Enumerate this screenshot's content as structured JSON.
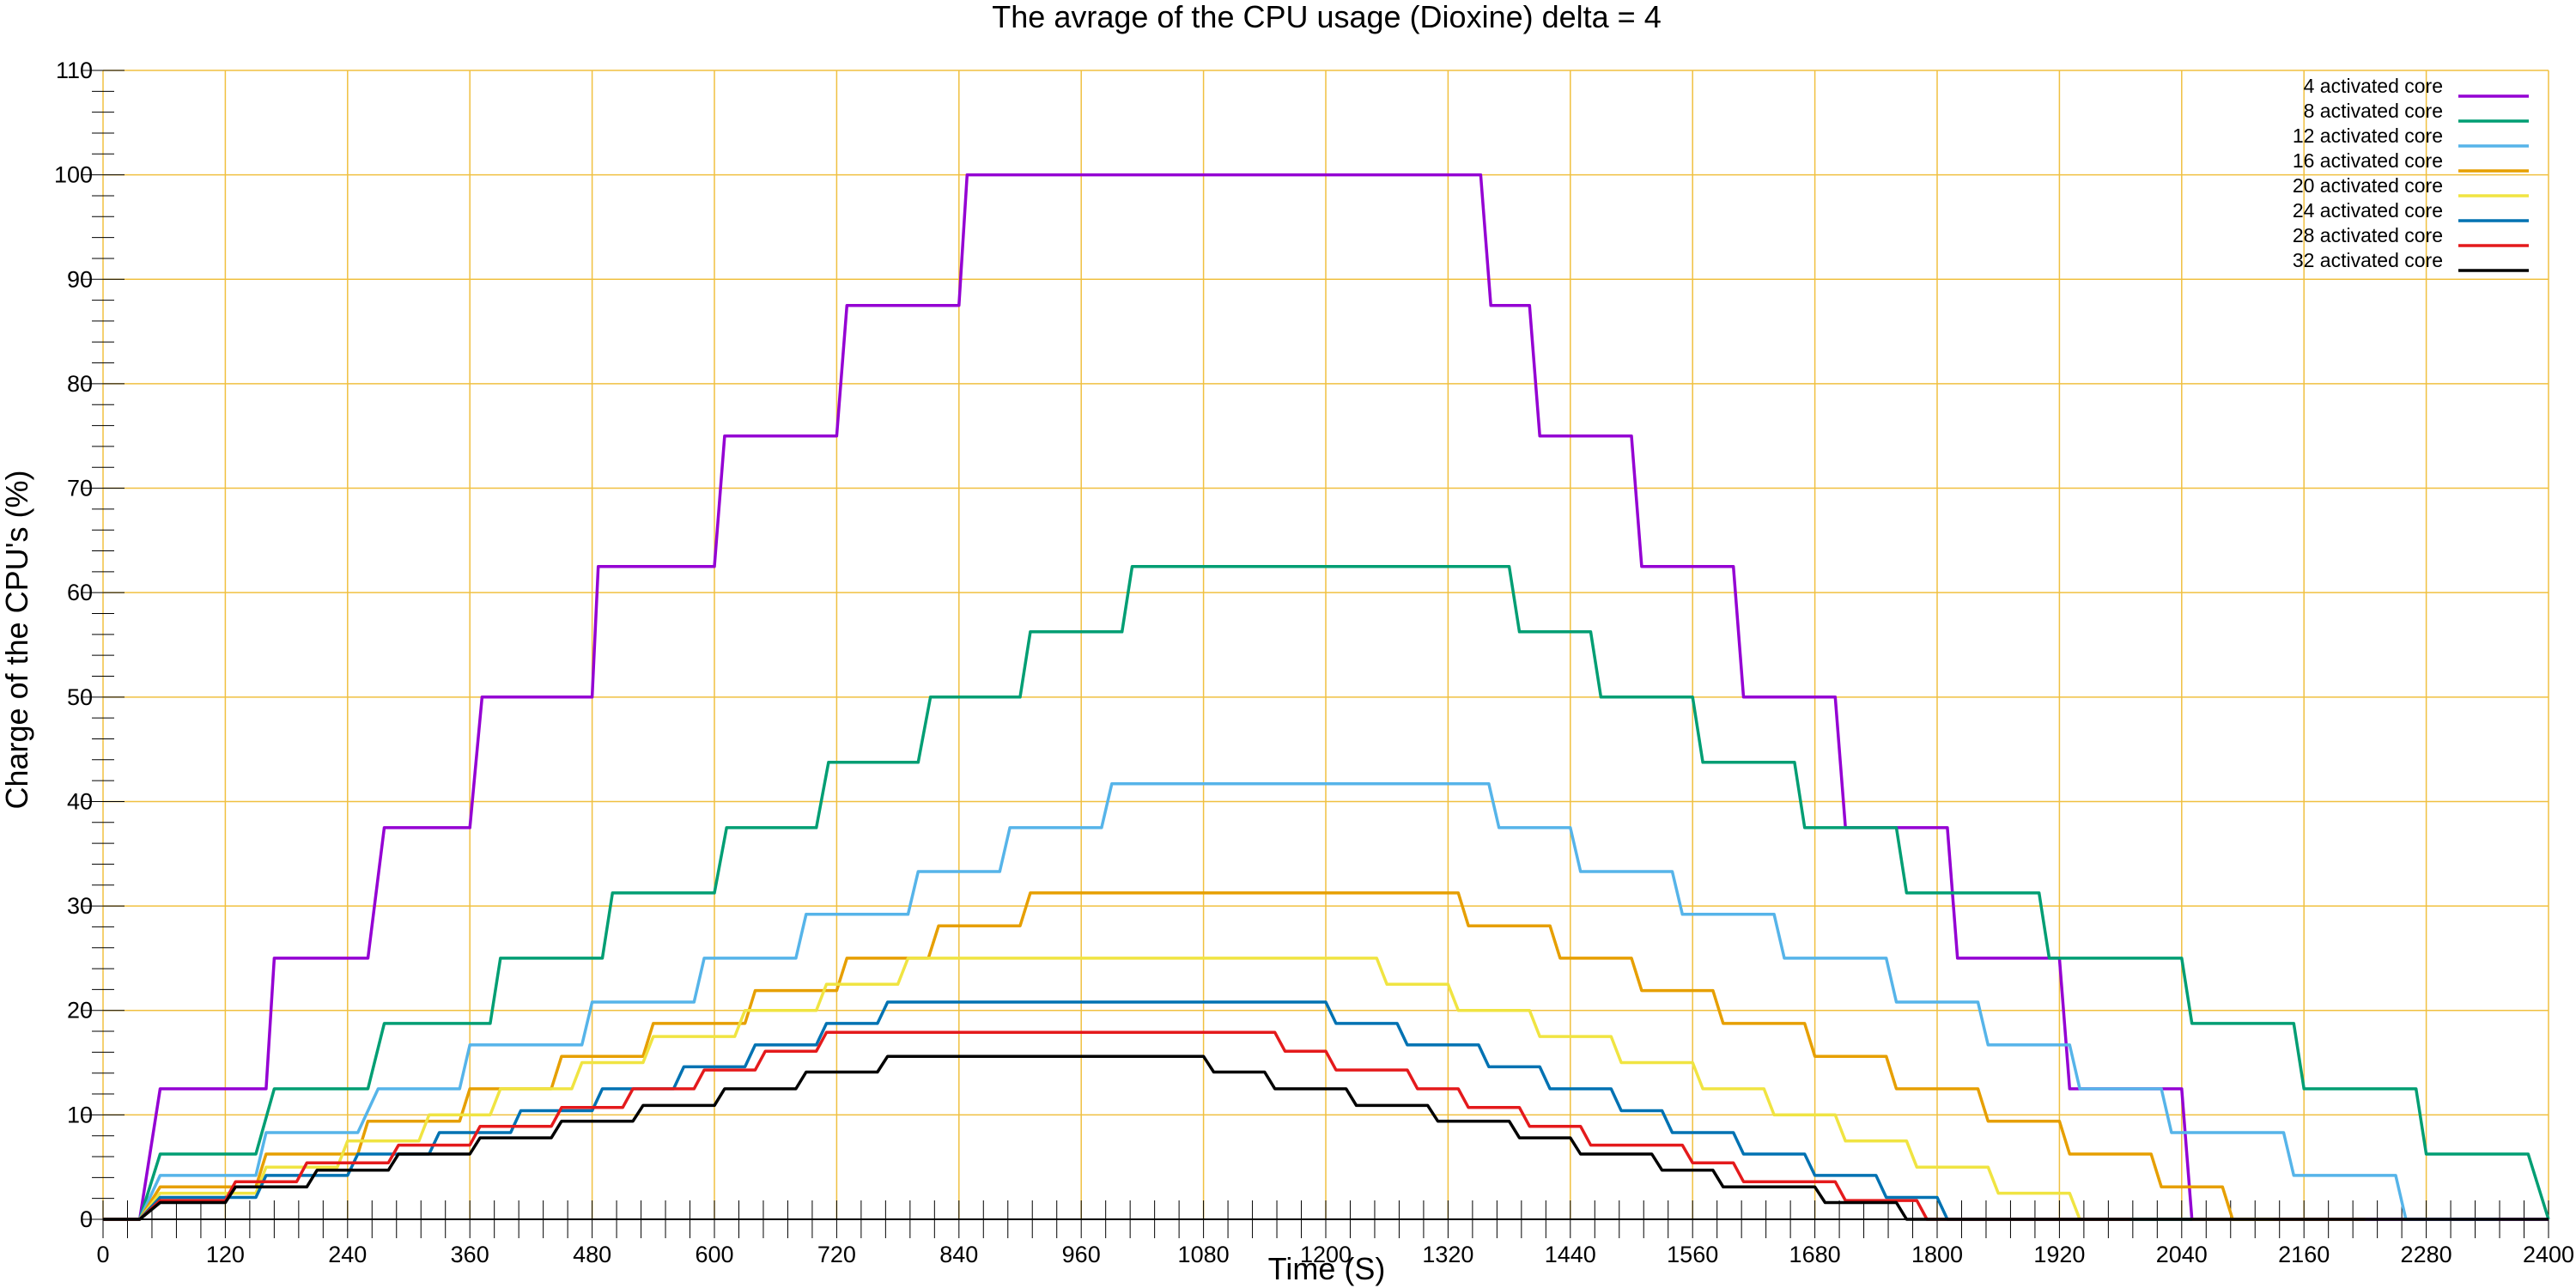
{
  "chart_data": {
    "type": "line",
    "title": "The avrage of the CPU usage (Dioxine) delta = 4",
    "xlabel": "Time (S)",
    "ylabel": "Charge of the CPU's (%)",
    "xlim": [
      0,
      2400
    ],
    "ylim": [
      0,
      110
    ],
    "xticks": [
      0,
      120,
      240,
      360,
      480,
      600,
      720,
      840,
      960,
      1080,
      1200,
      1320,
      1440,
      1560,
      1680,
      1800,
      1920,
      2040,
      2160,
      2280,
      2400
    ],
    "yticks": [
      0,
      10,
      20,
      30,
      40,
      50,
      60,
      70,
      80,
      90,
      100,
      110
    ],
    "grid": true,
    "grid_color": "#f0c040",
    "legend_position": "top-right",
    "series": [
      {
        "name": "4 activated core",
        "color": "#9400d3",
        "x": [
          0,
          36,
          56,
          160,
          168,
          260,
          276,
          360,
          372,
          480,
          486,
          600,
          610,
          720,
          730,
          840,
          848,
          1352,
          1362,
          1400,
          1410,
          1500,
          1510,
          1600,
          1610,
          1700,
          1710,
          1810,
          1820,
          1920,
          1930,
          2040,
          2050,
          2140,
          2150,
          2400
        ],
        "y": [
          0,
          0,
          12.5,
          12.5,
          25,
          25,
          37.5,
          37.5,
          50,
          50,
          62.5,
          62.5,
          75,
          75,
          87.5,
          87.5,
          100,
          100,
          87.5,
          87.5,
          75,
          75,
          62.5,
          62.5,
          50,
          50,
          37.5,
          37.5,
          25,
          25,
          12.5,
          12.5,
          0,
          0,
          0,
          0
        ]
      },
      {
        "name": "8 activated core",
        "color": "#009e73",
        "x": [
          0,
          36,
          56,
          150,
          168,
          260,
          276,
          380,
          390,
          490,
          500,
          600,
          612,
          700,
          712,
          800,
          812,
          900,
          910,
          1000,
          1010,
          1380,
          1390,
          1460,
          1470,
          1560,
          1570,
          1660,
          1670,
          1760,
          1770,
          1900,
          1910,
          2040,
          2050,
          2150,
          2160,
          2270,
          2280,
          2380,
          2400
        ],
        "y": [
          0,
          0,
          6.25,
          6.25,
          12.5,
          12.5,
          18.75,
          18.75,
          25,
          25,
          31.25,
          31.25,
          37.5,
          37.5,
          43.75,
          43.75,
          50,
          50,
          56.25,
          56.25,
          62.5,
          62.5,
          56.25,
          56.25,
          50,
          50,
          43.75,
          43.75,
          37.5,
          37.5,
          31.25,
          31.25,
          25,
          25,
          18.75,
          18.75,
          12.5,
          12.5,
          6.25,
          6.25,
          0
        ]
      },
      {
        "name": "12 activated core",
        "color": "#56b4e9",
        "x": [
          0,
          36,
          56,
          150,
          160,
          250,
          270,
          350,
          360,
          470,
          480,
          580,
          590,
          680,
          690,
          790,
          800,
          880,
          890,
          980,
          990,
          1360,
          1370,
          1440,
          1450,
          1540,
          1550,
          1640,
          1650,
          1750,
          1760,
          1840,
          1850,
          1930,
          1940,
          2020,
          2030,
          2140,
          2150,
          2250,
          2260,
          2340,
          2350
        ],
        "y": [
          0,
          0,
          4.2,
          4.2,
          8.3,
          8.3,
          12.5,
          12.5,
          16.7,
          16.7,
          20.8,
          20.8,
          25,
          25,
          29.2,
          29.2,
          33.3,
          33.3,
          37.5,
          37.5,
          41.7,
          41.7,
          37.5,
          37.5,
          33.3,
          33.3,
          29.2,
          29.2,
          25,
          25,
          20.8,
          20.8,
          16.7,
          16.7,
          12.5,
          12.5,
          8.3,
          8.3,
          4.2,
          4.2,
          0,
          0,
          0
        ]
      },
      {
        "name": "16 activated core",
        "color": "#e69f00",
        "x": [
          0,
          36,
          56,
          150,
          160,
          250,
          260,
          350,
          360,
          440,
          450,
          530,
          540,
          630,
          640,
          720,
          730,
          810,
          820,
          900,
          910,
          1330,
          1340,
          1420,
          1430,
          1500,
          1510,
          1580,
          1590,
          1670,
          1680,
          1750,
          1760,
          1840,
          1850,
          1920,
          1930,
          2010,
          2020,
          2080,
          2090,
          2180,
          2190,
          2210,
          2220
        ],
        "y": [
          0,
          0,
          3.1,
          3.1,
          6.25,
          6.25,
          9.4,
          9.4,
          12.5,
          12.5,
          15.6,
          15.6,
          18.75,
          18.75,
          21.9,
          21.9,
          25,
          25,
          28.1,
          28.1,
          31.25,
          31.25,
          28.1,
          28.1,
          25,
          25,
          21.9,
          21.9,
          18.75,
          18.75,
          15.6,
          15.6,
          12.5,
          12.5,
          9.4,
          9.4,
          6.25,
          6.25,
          3.1,
          3.1,
          0,
          0,
          0,
          0,
          0
        ]
      },
      {
        "name": "20 activated core",
        "color": "#f0e442",
        "x": [
          0,
          36,
          56,
          150,
          160,
          230,
          240,
          310,
          320,
          380,
          390,
          460,
          470,
          530,
          540,
          620,
          630,
          700,
          710,
          780,
          790,
          850,
          860,
          1250,
          1260,
          1320,
          1330,
          1400,
          1410,
          1480,
          1490,
          1560,
          1570,
          1630,
          1640,
          1700,
          1710,
          1770,
          1780,
          1850,
          1860,
          1930,
          1940,
          2010,
          2020,
          2080,
          2090,
          2120,
          2130
        ],
        "y": [
          0,
          0,
          2.5,
          2.5,
          5,
          5,
          7.5,
          7.5,
          10,
          10,
          12.5,
          12.5,
          15,
          15,
          17.5,
          17.5,
          20,
          20,
          22.5,
          22.5,
          25,
          25,
          25,
          25,
          22.5,
          22.5,
          20,
          20,
          17.5,
          17.5,
          15,
          15,
          12.5,
          12.5,
          10,
          10,
          7.5,
          7.5,
          5,
          5,
          2.5,
          2.5,
          0,
          0,
          0,
          0,
          0,
          0,
          0
        ]
      },
      {
        "name": "24 activated core",
        "color": "#0072b2",
        "x": [
          0,
          36,
          56,
          150,
          160,
          240,
          250,
          320,
          330,
          400,
          410,
          480,
          490,
          560,
          570,
          630,
          640,
          700,
          710,
          760,
          770,
          830,
          840,
          1200,
          1210,
          1270,
          1280,
          1350,
          1360,
          1410,
          1420,
          1480,
          1490,
          1530,
          1540,
          1600,
          1610,
          1670,
          1680,
          1740,
          1750,
          1800,
          1810,
          1870,
          1880,
          1960,
          1970,
          2040,
          2050
        ],
        "y": [
          0,
          0,
          2.1,
          2.1,
          4.2,
          4.2,
          6.25,
          6.25,
          8.3,
          8.3,
          10.4,
          10.4,
          12.5,
          12.5,
          14.6,
          14.6,
          16.7,
          16.7,
          18.75,
          18.75,
          20.8,
          20.8,
          20.8,
          20.8,
          18.75,
          18.75,
          16.7,
          16.7,
          14.6,
          14.6,
          12.5,
          12.5,
          10.4,
          10.4,
          8.3,
          8.3,
          6.25,
          6.25,
          4.2,
          4.2,
          2.1,
          2.1,
          0,
          0,
          0,
          0,
          0,
          0,
          0
        ]
      },
      {
        "name": "28 activated core",
        "color": "#e41a1c",
        "x": [
          0,
          36,
          56,
          120,
          130,
          190,
          200,
          280,
          290,
          360,
          370,
          440,
          450,
          510,
          520,
          580,
          590,
          640,
          650,
          700,
          710,
          780,
          790,
          1150,
          1160,
          1200,
          1210,
          1280,
          1290,
          1330,
          1340,
          1390,
          1400,
          1450,
          1460,
          1550,
          1560,
          1600,
          1610,
          1700,
          1710,
          1780,
          1790,
          1850,
          1860,
          1980,
          1990
        ],
        "y": [
          0,
          0,
          1.8,
          1.8,
          3.6,
          3.6,
          5.4,
          5.4,
          7.1,
          7.1,
          8.9,
          8.9,
          10.7,
          10.7,
          12.5,
          12.5,
          14.3,
          14.3,
          16.1,
          16.1,
          17.9,
          17.9,
          17.9,
          17.9,
          16.1,
          16.1,
          14.3,
          14.3,
          12.5,
          12.5,
          10.7,
          10.7,
          8.9,
          8.9,
          7.1,
          7.1,
          5.4,
          5.4,
          3.6,
          3.6,
          1.8,
          1.8,
          0,
          0,
          0,
          0,
          0
        ]
      },
      {
        "name": "32 activated core",
        "color": "#000000",
        "x": [
          0,
          36,
          56,
          120,
          130,
          200,
          210,
          280,
          290,
          360,
          370,
          440,
          450,
          520,
          530,
          600,
          610,
          680,
          690,
          760,
          770,
          820,
          830,
          1080,
          1090,
          1140,
          1150,
          1220,
          1230,
          1300,
          1310,
          1380,
          1390,
          1440,
          1450,
          1520,
          1530,
          1580,
          1590,
          1680,
          1690,
          1760,
          1770,
          1820,
          1830,
          1910,
          1920,
          2400
        ],
        "y": [
          0,
          0,
          1.6,
          1.6,
          3.1,
          3.1,
          4.7,
          4.7,
          6.25,
          6.25,
          7.8,
          7.8,
          9.4,
          9.4,
          10.9,
          10.9,
          12.5,
          12.5,
          14.1,
          14.1,
          15.6,
          15.6,
          15.6,
          15.6,
          14.1,
          14.1,
          12.5,
          12.5,
          10.9,
          10.9,
          9.4,
          9.4,
          7.8,
          7.8,
          6.25,
          6.25,
          4.7,
          4.7,
          3.1,
          3.1,
          1.6,
          1.6,
          0,
          0,
          0,
          0,
          0,
          0
        ]
      }
    ]
  }
}
